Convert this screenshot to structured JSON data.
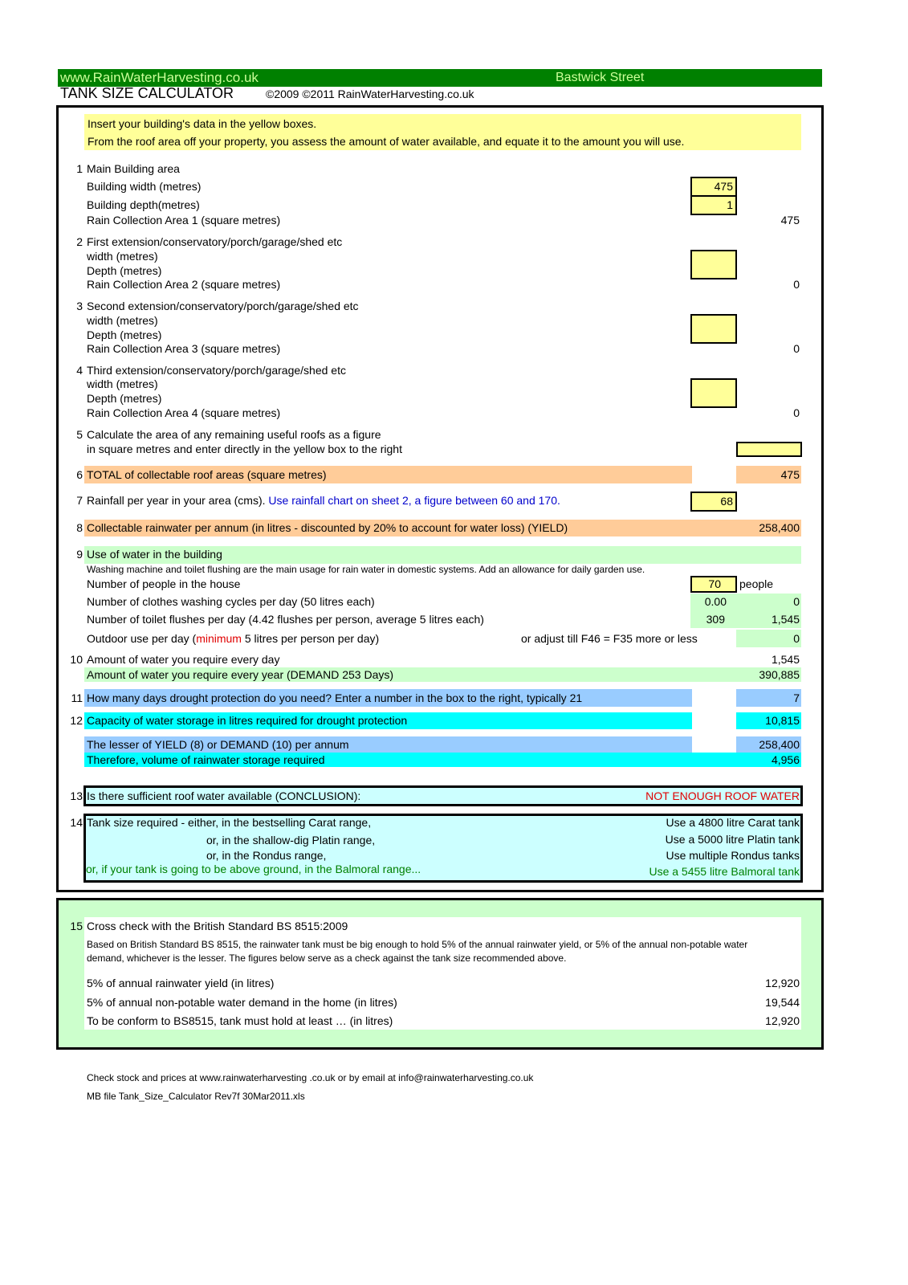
{
  "header": {
    "site": "www.RainWaterHarvesting.co.uk",
    "location": "Bastwick Street",
    "title": "TANK SIZE CALCULATOR",
    "copyright": "©2009 ©2011 RainWaterHarvesting.co.uk"
  },
  "colors": {
    "header_green": "#008000",
    "input_yellow": "#ffff99",
    "total_orange": "#ffcc99",
    "usage_green": "#ccffcc",
    "blue": "#99ccff",
    "cyan": "#00ffff",
    "light_cyan": "#ccffff",
    "warning_red": "#e00000"
  },
  "intro": {
    "line1": "Insert your building's data in the yellow boxes.",
    "line2": "From the roof area off your property, you assess the amount of water available, and equate it to the amount you will use."
  },
  "s1": {
    "num": "1",
    "title": "Main Building area",
    "width_label": "Building width (metres)",
    "width": "475",
    "depth_label": "Building depth(metres)",
    "depth": "1",
    "area_label": "Rain Collection Area 1 (square metres)",
    "area": "475"
  },
  "s2": {
    "num": "2",
    "title": "First extension/conservatory/porch/garage/shed etc",
    "width_label": "width (metres)",
    "depth_label": "Depth (metres)",
    "area_label": "Rain Collection Area 2 (square metres)",
    "area": "0"
  },
  "s3": {
    "num": "3",
    "title": "Second extension/conservatory/porch/garage/shed etc",
    "width_label": "width (metres)",
    "depth_label": "Depth (metres)",
    "area_label": "Rain Collection Area 3 (square metres)",
    "area": "0"
  },
  "s4": {
    "num": "4",
    "title": "Third extension/conservatory/porch/garage/shed etc",
    "width_label": "width (metres)",
    "depth_label": "Depth (metres)",
    "area_label": "Rain Collection Area 4 (square metres)",
    "area": "0"
  },
  "s5": {
    "num": "5",
    "line1": "Calculate the area of any remaining useful roofs as a figure",
    "line2": "in square metres and enter directly in the yellow box to the right"
  },
  "s6": {
    "num": "6",
    "label": "TOTAL of collectable roof areas (square metres)",
    "value": "475"
  },
  "s7": {
    "num": "7",
    "label": "Rainfall per year in your area (cms).",
    "hint": "Use rainfall chart on sheet 2, a figure between 60 and 170.",
    "value": "68"
  },
  "s8": {
    "num": "8",
    "label": "Collectable rainwater per annum  (in litres - discounted by 20% to account for water loss) (YIELD)",
    "value": "258,400"
  },
  "s9": {
    "num": "9",
    "title": "Use of water in the building",
    "note": "Washing machine and toilet flushing are the main usage for rain water in domestic systems. Add an allowance for daily garden use.",
    "people_label": "Number of people in the house",
    "people": "70",
    "people_unit": "people",
    "washing_label": "Number of clothes washing cycles per day (50 litres each)",
    "washing_count": "0.00",
    "washing_litres": "0",
    "toilet_label": "Number of toilet flushes  per day (4.42 flushes per person, average 5 litres each)",
    "toilet_count": "309",
    "toilet_litres": "1,545",
    "outdoor_pre": "Outdoor use per day (",
    "outdoor_red": "minimum",
    "outdoor_post": " 5 litres per person per day)",
    "outdoor_note": "or adjust till F46 = F35 more or less",
    "outdoor_litres": "0"
  },
  "s10": {
    "num": "10",
    "daily_label": "Amount of water you require every day",
    "daily": "1,545",
    "yearly_label": "Amount of water you require every year (DEMAND 253 Days)",
    "yearly": "390,885"
  },
  "s11": {
    "num": "11",
    "label": "How many days drought protection do you need? Enter a number in the box to the right, typically 21",
    "value": "7"
  },
  "s12": {
    "num": "12",
    "label": "Capacity of water storage in litres required for drought protection",
    "value": "10,815",
    "lesser_label": "The lesser of YIELD (8) or DEMAND (10) per annum",
    "lesser": "258,400",
    "storage_label": "Therefore, volume of rainwater storage required",
    "storage": "4,956"
  },
  "s13": {
    "num": "13",
    "label": "Is there sufficient roof water available     (CONCLUSION):",
    "value": "NOT ENOUGH ROOF WATER"
  },
  "s14": {
    "num": "14",
    "rows": [
      {
        "label": "Tank size required  -  either, in the bestselling Carat range,",
        "value": "Use a 4800 litre Carat tank"
      },
      {
        "label": "or, in the shallow-dig Platin range,",
        "value": "Use a 5000 litre Platin tank"
      },
      {
        "label": "or, in the Rondus range,",
        "value": "Use multiple Rondus tanks"
      },
      {
        "label": "or, if your tank is going to be above ground, in the Balmoral range...",
        "value": "Use a 5455 litre Balmoral tank"
      }
    ]
  },
  "s15": {
    "num": "15",
    "title": "Cross check with the British Standard BS 8515:2009",
    "para1": "Based on British Standard BS 8515, the rainwater tank must be big enough to hold 5% of the annual rainwater yield, or 5% of the annual non-potable water",
    "para2": "demand, whichever is the lesser. The figures below serve as a check against the tank size recommended above.",
    "rows": [
      {
        "label": "5% of annual rainwater yield (in litres)",
        "value": "12,920"
      },
      {
        "label": "5% of annual non-potable water demand in the home (in litres)",
        "value": "19,544"
      },
      {
        "label": "To be conform to BS8515, tank must hold at least … (in litres)",
        "value": "12,920"
      }
    ]
  },
  "footer": {
    "line1": "Check stock and prices at www.rainwaterharvesting .co.uk or by email at info@rainwaterharvesting.co.uk",
    "line2": "MB file Tank_Size_Calculator Rev7f 30Mar2011.xls"
  }
}
